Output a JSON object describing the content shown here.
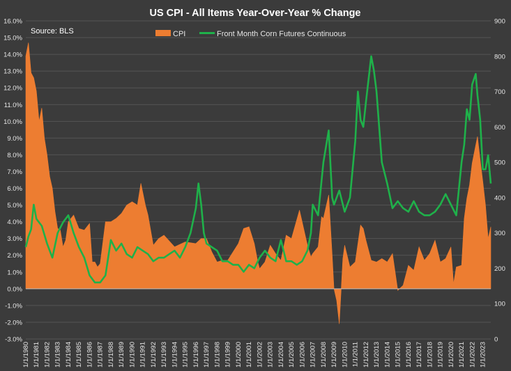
{
  "chart_data": {
    "type": "area+line",
    "title": "US CPI - All Items Year-Over-Year % Change",
    "annotation": "Source: BLS",
    "legend_position": "top-center",
    "grid": true,
    "colors": {
      "background": "#3b3b3b",
      "cpi": "#ed7d31",
      "corn": "#1fb14a",
      "grid": "#555555"
    },
    "y_left": {
      "min": -3,
      "max": 16,
      "ticks": [
        -3,
        -2,
        -1,
        0,
        1,
        2,
        3,
        4,
        5,
        6,
        7,
        8,
        9,
        10,
        11,
        12,
        13,
        14,
        15,
        16
      ],
      "tick_labels": [
        "-3.0%",
        "-2.0%",
        "-1.0%",
        "0.0%",
        "1.0%",
        "2.0%",
        "3.0%",
        "4.0%",
        "5.0%",
        "6.0%",
        "7.0%",
        "8.0%",
        "9.0%",
        "10.0%",
        "11.0%",
        "12.0%",
        "13.0%",
        "14.0%",
        "15.0%",
        "16.0%"
      ]
    },
    "y_right": {
      "min": 0,
      "max": 900,
      "ticks": [
        0,
        100,
        200,
        300,
        400,
        500,
        600,
        700,
        800,
        900
      ],
      "tick_labels": [
        "0",
        "100",
        "200",
        "300",
        "400",
        "500",
        "600",
        "700",
        "800",
        "900"
      ]
    },
    "x_range": [
      1980.0,
      2023.75
    ],
    "x_ticks": [
      1980,
      1981,
      1982,
      1983,
      1984,
      1985,
      1986,
      1987,
      1988,
      1989,
      1990,
      1991,
      1992,
      1993,
      1994,
      1995,
      1996,
      1997,
      1998,
      1999,
      2000,
      2001,
      2002,
      2003,
      2004,
      2005,
      2006,
      2007,
      2008,
      2009,
      2010,
      2011,
      2012,
      2013,
      2014,
      2015,
      2016,
      2017,
      2018,
      2019,
      2020,
      2021,
      2022,
      2023
    ],
    "x_tick_labels": [
      "1/1/1980",
      "1/1/1981",
      "1/1/1982",
      "1/1/1983",
      "1/1/1984",
      "1/1/1985",
      "1/1/1986",
      "1/1/1987",
      "1/1/1988",
      "1/1/1989",
      "1/1/1990",
      "1/1/1991",
      "1/1/1992",
      "1/1/1993",
      "1/1/1994",
      "1/1/1995",
      "1/1/1996",
      "1/1/1997",
      "1/1/1998",
      "1/1/1999",
      "1/1/2000",
      "1/1/2001",
      "1/1/2002",
      "1/1/2003",
      "1/1/2004",
      "1/1/2005",
      "1/1/2006",
      "1/1/2007",
      "1/1/2008",
      "1/1/2009",
      "1/1/2010",
      "1/1/2011",
      "1/1/2012",
      "1/1/2013",
      "1/1/2014",
      "1/1/2015",
      "1/1/2016",
      "1/1/2017",
      "1/1/2018",
      "1/1/2019",
      "1/1/2020",
      "1/1/2021",
      "1/1/2022",
      "1/1/2023"
    ],
    "series": [
      {
        "name": "CPI",
        "type": "area",
        "axis": "left",
        "x": [
          1980.0,
          1980.25,
          1980.5,
          1980.75,
          1981.0,
          1981.25,
          1981.5,
          1981.75,
          1982.0,
          1982.25,
          1982.5,
          1982.75,
          1983.0,
          1983.25,
          1983.5,
          1983.75,
          1984.0,
          1984.5,
          1985.0,
          1985.5,
          1986.0,
          1986.25,
          1986.5,
          1986.75,
          1987.0,
          1987.5,
          1988.0,
          1988.5,
          1989.0,
          1989.5,
          1990.0,
          1990.5,
          1990.83,
          1991.25,
          1991.5,
          1992.0,
          1992.5,
          1993.0,
          1994.0,
          1995.0,
          1996.0,
          1996.5,
          1997.0,
          1997.5,
          1998.0,
          1998.5,
          1999.0,
          1999.5,
          2000.0,
          2000.5,
          2001.0,
          2001.5,
          2001.83,
          2002.0,
          2002.5,
          2003.0,
          2003.5,
          2004.0,
          2004.5,
          2005.0,
          2005.75,
          2006.0,
          2006.5,
          2006.83,
          2007.0,
          2007.5,
          2007.83,
          2008.0,
          2008.5,
          2008.83,
          2009.0,
          2009.25,
          2009.5,
          2009.83,
          2010.0,
          2010.5,
          2011.0,
          2011.5,
          2011.75,
          2012.0,
          2012.5,
          2013.0,
          2013.5,
          2014.0,
          2014.5,
          2015.0,
          2015.5,
          2016.0,
          2016.5,
          2017.0,
          2017.5,
          2018.0,
          2018.5,
          2019.0,
          2019.5,
          2020.0,
          2020.25,
          2020.5,
          2021.0,
          2021.25,
          2021.5,
          2021.75,
          2022.0,
          2022.25,
          2022.5,
          2022.75,
          2023.0,
          2023.25,
          2023.5,
          2023.75
        ],
        "values": [
          13.9,
          14.7,
          12.9,
          12.6,
          11.8,
          10.0,
          10.8,
          9.0,
          8.0,
          6.7,
          6.0,
          4.6,
          3.6,
          3.5,
          2.5,
          2.9,
          4.0,
          4.4,
          3.6,
          3.5,
          3.9,
          1.6,
          1.6,
          1.3,
          1.5,
          4.0,
          4.0,
          4.2,
          4.5,
          5.0,
          5.2,
          5.0,
          6.3,
          5.0,
          4.4,
          2.6,
          3.0,
          3.2,
          2.5,
          2.8,
          2.7,
          3.0,
          3.0,
          2.2,
          1.6,
          1.7,
          1.7,
          2.2,
          2.7,
          3.6,
          3.7,
          2.7,
          1.6,
          1.2,
          1.6,
          2.6,
          2.1,
          1.7,
          3.2,
          3.0,
          4.7,
          4.0,
          2.6,
          1.9,
          2.1,
          2.5,
          4.3,
          4.2,
          5.6,
          2.0,
          0.0,
          -0.7,
          -2.1,
          1.8,
          2.6,
          1.3,
          1.6,
          3.8,
          3.6,
          2.9,
          1.7,
          1.6,
          1.8,
          1.6,
          2.1,
          -0.1,
          0.2,
          1.4,
          1.1,
          2.5,
          1.7,
          2.1,
          2.9,
          1.6,
          1.8,
          2.5,
          0.3,
          1.3,
          1.4,
          4.2,
          5.4,
          6.2,
          7.5,
          8.3,
          9.1,
          7.7,
          6.4,
          5.0,
          3.0,
          3.7
        ]
      },
      {
        "name": "Front Month Corn Futures Continuous",
        "type": "line",
        "axis": "right",
        "x": [
          1980.0,
          1980.25,
          1980.5,
          1980.75,
          1981.0,
          1981.5,
          1982.0,
          1982.5,
          1983.0,
          1983.5,
          1984.0,
          1984.5,
          1985.0,
          1985.5,
          1986.0,
          1986.5,
          1987.0,
          1987.5,
          1988.0,
          1988.5,
          1989.0,
          1989.5,
          1990.0,
          1990.5,
          1991.0,
          1991.5,
          1992.0,
          1992.5,
          1993.0,
          1993.5,
          1994.0,
          1994.5,
          1995.0,
          1995.5,
          1996.0,
          1996.25,
          1996.5,
          1996.75,
          1997.0,
          1997.5,
          1998.0,
          1998.5,
          1999.0,
          1999.5,
          2000.0,
          2000.5,
          2001.0,
          2001.5,
          2002.0,
          2002.5,
          2003.0,
          2003.5,
          2004.0,
          2004.5,
          2005.0,
          2005.5,
          2006.0,
          2006.5,
          2006.83,
          2007.0,
          2007.5,
          2008.0,
          2008.5,
          2008.83,
          2009.0,
          2009.5,
          2010.0,
          2010.5,
          2011.0,
          2011.25,
          2011.5,
          2011.75,
          2012.0,
          2012.5,
          2012.75,
          2013.0,
          2013.5,
          2014.0,
          2014.5,
          2015.0,
          2015.5,
          2016.0,
          2016.5,
          2017.0,
          2017.5,
          2018.0,
          2018.5,
          2019.0,
          2019.5,
          2020.0,
          2020.5,
          2021.0,
          2021.25,
          2021.5,
          2021.75,
          2022.0,
          2022.33,
          2022.5,
          2022.75,
          2023.0,
          2023.25,
          2023.5,
          2023.75
        ],
        "values": [
          260,
          290,
          310,
          380,
          340,
          320,
          270,
          230,
          300,
          330,
          350,
          300,
          260,
          230,
          180,
          160,
          160,
          180,
          280,
          250,
          270,
          240,
          230,
          260,
          250,
          240,
          220,
          230,
          230,
          240,
          250,
          230,
          260,
          300,
          370,
          440,
          380,
          300,
          270,
          260,
          250,
          220,
          220,
          210,
          210,
          190,
          210,
          200,
          230,
          250,
          230,
          220,
          280,
          220,
          220,
          210,
          220,
          250,
          300,
          380,
          350,
          500,
          590,
          400,
          380,
          420,
          360,
          400,
          560,
          700,
          620,
          600,
          670,
          800,
          760,
          700,
          500,
          440,
          370,
          390,
          370,
          360,
          390,
          360,
          350,
          350,
          360,
          380,
          410,
          380,
          350,
          500,
          550,
          650,
          620,
          720,
          750,
          690,
          620,
          480,
          480,
          520,
          440
        ]
      }
    ]
  }
}
